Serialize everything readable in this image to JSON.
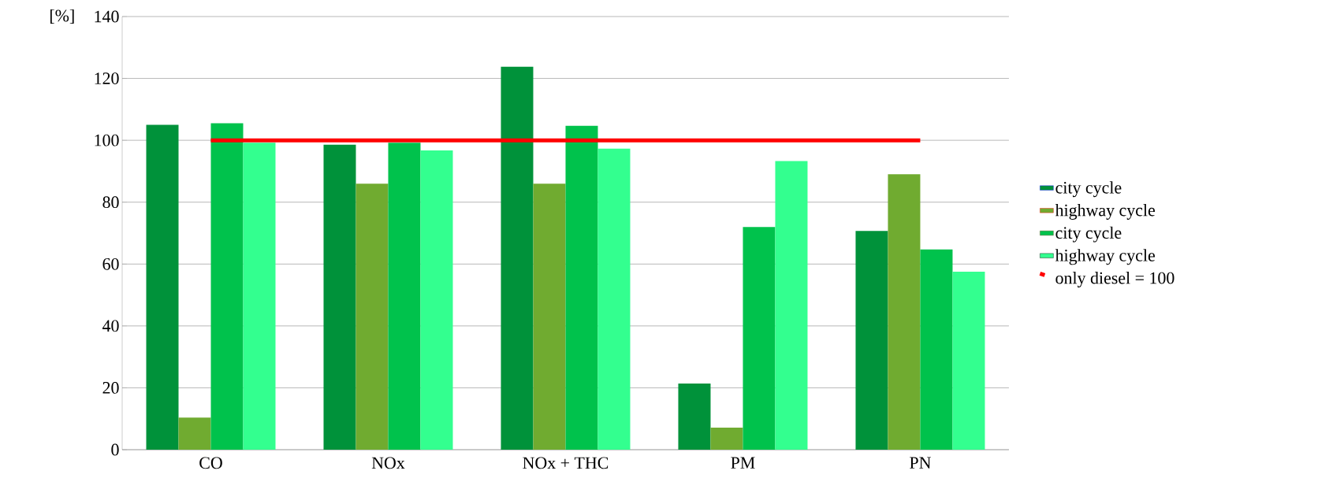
{
  "chart_data": {
    "type": "bar",
    "ylabel": "[%]",
    "categories": [
      "CO",
      "NOx",
      "NOx + THC",
      "PM",
      "PN"
    ],
    "series": [
      {
        "name": "city cycle",
        "color": "#00923a",
        "values": [
          105,
          98.6,
          123.8,
          21.4,
          70.7
        ]
      },
      {
        "name": "highway cycle",
        "color": "#70ab30",
        "values": [
          10.4,
          86,
          86,
          7.1,
          89
        ]
      },
      {
        "name": "city cycle",
        "color": "#00c24c",
        "values": [
          105.5,
          99.2,
          104.7,
          72,
          64.7
        ]
      },
      {
        "name": "highway cycle",
        "color": "#33ff8f",
        "values": [
          99.2,
          96.7,
          97.3,
          93.3,
          57.5
        ]
      },
      {
        "name": "only diesel = 100",
        "type": "line",
        "color": "#ff0000",
        "values": [
          100,
          100,
          100,
          100,
          100
        ]
      }
    ],
    "ylim": [
      0,
      140
    ],
    "yticks": [
      0,
      20,
      40,
      60,
      80,
      100,
      120,
      140
    ],
    "grid": "y",
    "legend": "right"
  }
}
